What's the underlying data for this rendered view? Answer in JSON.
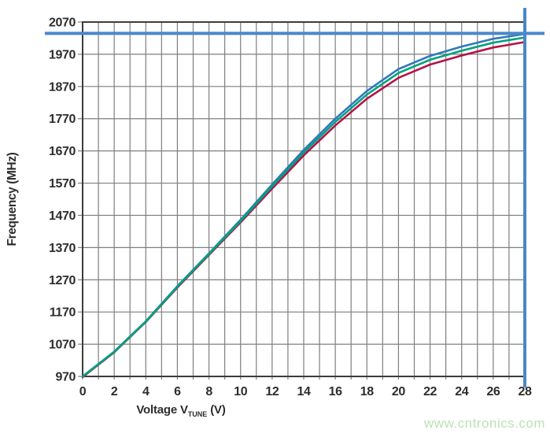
{
  "page": {
    "background": "#ffffff"
  },
  "watermark": {
    "text": "www.cntronics.com",
    "color": "#b9e4b2"
  },
  "chart_data": {
    "type": "line",
    "title": "",
    "ylabel": "Frequency (MHz)",
    "xlabel_prefix": "Voltage V",
    "xlabel_sub": "TUNE",
    "xlabel_suffix": " (V)",
    "xlim": [
      0,
      28
    ],
    "ylim": [
      970,
      2070
    ],
    "xticks": [
      0,
      2,
      4,
      6,
      8,
      10,
      12,
      14,
      16,
      18,
      20,
      22,
      24,
      26,
      28
    ],
    "yticks": [
      970,
      1070,
      1170,
      1270,
      1370,
      1470,
      1570,
      1670,
      1770,
      1870,
      1970,
      2070
    ],
    "x_minor_step": 1,
    "grid": true,
    "legend": "none",
    "x": [
      0,
      2,
      4,
      6,
      8,
      10,
      12,
      14,
      16,
      18,
      20,
      22,
      24,
      26,
      28
    ],
    "series": [
      {
        "name": "blue",
        "color": "#2e79bd",
        "values": [
          970,
          1047,
          1141,
          1250,
          1352,
          1456,
          1566,
          1673,
          1770,
          1856,
          1924,
          1965,
          1994,
          2018,
          2033
        ]
      },
      {
        "name": "red",
        "color": "#b4134a",
        "values": [
          968,
          1045,
          1139,
          1246,
          1347,
          1448,
          1553,
          1656,
          1749,
          1832,
          1897,
          1938,
          1966,
          1991,
          2008
        ]
      },
      {
        "name": "green",
        "color": "#00a17c",
        "values": [
          970,
          1046,
          1140,
          1248,
          1350,
          1452,
          1560,
          1665,
          1760,
          1845,
          1912,
          1953,
          1981,
          2006,
          2022
        ]
      }
    ],
    "reference_lines": {
      "horizontal": {
        "y": 2035,
        "color": "#4a87cb"
      },
      "vertical": {
        "x": 28,
        "color": "#4a87cb"
      }
    },
    "colors": {
      "grid": "#7e7e7e",
      "border": "#3c3c3c",
      "tick_text": "#2d2d2d"
    }
  }
}
